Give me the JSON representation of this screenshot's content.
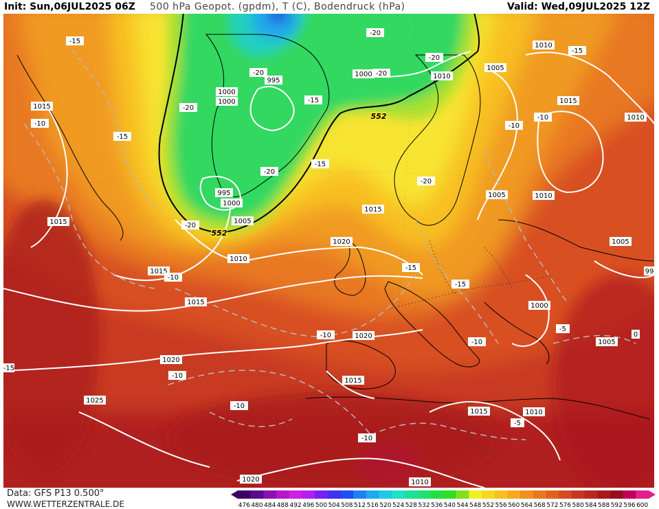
{
  "header": {
    "init": "Init: Sun,06JUL2025 06Z",
    "title": "500 hPa Geopot. (gpdm), T (C), Bodendruck (hPa)",
    "valid": "Valid: Wed,09JUL2025 12Z"
  },
  "footer": {
    "data_source": "Data: GFS P13 0.500°",
    "website": "WWW.WETTERZENTRALE.DE"
  },
  "colorbar": {
    "ticks": [
      "476",
      "480",
      "484",
      "488",
      "492",
      "496",
      "500",
      "504",
      "508",
      "512",
      "516",
      "520",
      "524",
      "528",
      "532",
      "536",
      "540",
      "544",
      "548",
      "552",
      "556",
      "560",
      "564",
      "568",
      "572",
      "576",
      "580",
      "584",
      "588",
      "592",
      "596",
      "600"
    ],
    "colors": [
      "#3b0066",
      "#5a0a8c",
      "#8a10b0",
      "#b418c8",
      "#d020e0",
      "#b020f0",
      "#7a20f0",
      "#4030f0",
      "#2050f0",
      "#2080f0",
      "#20a8f0",
      "#20c8e8",
      "#20e0c8",
      "#20e098",
      "#20e070",
      "#20e040",
      "#30e020",
      "#80e020",
      "#f0f020",
      "#f8d820",
      "#f8c020",
      "#f8a820",
      "#f09020",
      "#e87820",
      "#e06020",
      "#d84a20",
      "#c83820",
      "#b82820",
      "#a81820",
      "#980c20",
      "#c00058",
      "#e0208c"
    ],
    "arrow_left_color": "#3b0066",
    "arrow_right_color": "#e0208c"
  },
  "map": {
    "pressure_labels": [
      "1015",
      "1010",
      "1015",
      "1015",
      "1015",
      "1020",
      "1025",
      "1000",
      "1000",
      "995",
      "995",
      "1000",
      "1005",
      "1010",
      "1020",
      "1000",
      "1010",
      "1005",
      "1015",
      "1010",
      "1005",
      "1010",
      "1015",
      "1005",
      "1000",
      "1020",
      "1015",
      "1005",
      "1015",
      "1010",
      "1020",
      "1010",
      "99"
    ],
    "temp_labels": [
      "-15",
      "-10",
      "-15",
      "-20",
      "-20",
      "-15",
      "-20",
      "-20",
      "-20",
      "-20",
      "-15",
      "-20",
      "-20",
      "-15",
      "-10",
      "-10",
      "-15",
      "-10",
      "-10",
      "-15",
      "-10",
      "-10",
      "-10",
      "-5",
      "-5",
      "-10",
      "-15",
      "0"
    ],
    "contour_label_552": "552",
    "colors": {
      "deep_red": "#a81820",
      "red": "#c03020",
      "red_orange": "#d84a20",
      "orange": "#e87820",
      "light_orange": "#f09020",
      "amber": "#f8b020",
      "yellow": "#f8e020",
      "lime": "#a8e030",
      "green": "#30d850",
      "cyan": "#20c8d8",
      "blue": "#2080e0",
      "magenta": "#b8104a"
    }
  }
}
